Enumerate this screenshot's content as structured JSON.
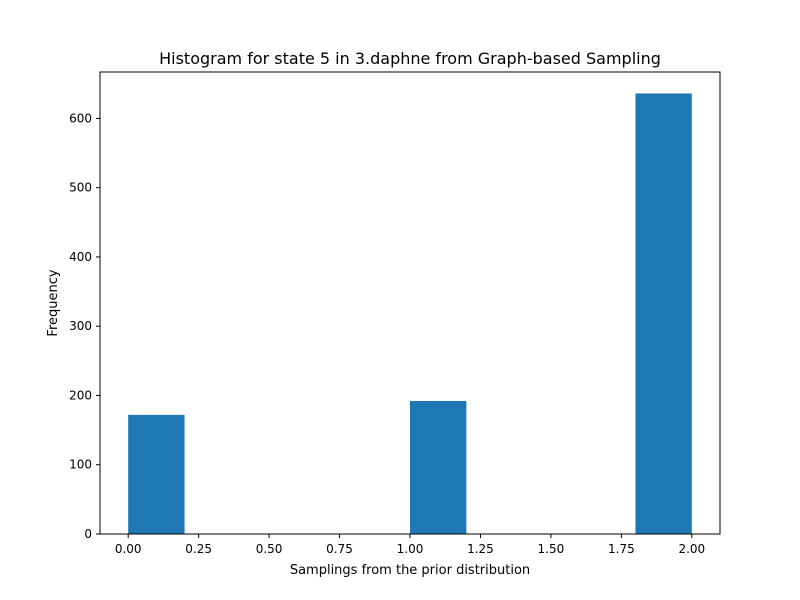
{
  "chart_data": {
    "type": "bar",
    "title": "Histogram for state 5 in 3.daphne from Graph-based Sampling",
    "xlabel": "Samplings from the prior distribution",
    "ylabel": "Frequency",
    "xlim": [
      -0.1,
      2.1
    ],
    "ylim": [
      0,
      667
    ],
    "x_ticks": [
      0.0,
      0.25,
      0.5,
      0.75,
      1.0,
      1.25,
      1.5,
      1.75,
      2.0
    ],
    "x_tick_labels": [
      "0.00",
      "0.25",
      "0.50",
      "0.75",
      "1.00",
      "1.25",
      "1.50",
      "1.75",
      "2.00"
    ],
    "y_ticks": [
      0,
      100,
      200,
      300,
      400,
      500,
      600
    ],
    "y_tick_labels": [
      "0",
      "100",
      "200",
      "300",
      "400",
      "500",
      "600"
    ],
    "bins": [
      {
        "start": 0.0,
        "end": 0.2,
        "value": 172
      },
      {
        "start": 0.2,
        "end": 0.4,
        "value": 0
      },
      {
        "start": 0.4,
        "end": 0.6,
        "value": 0
      },
      {
        "start": 0.6,
        "end": 0.8,
        "value": 0
      },
      {
        "start": 0.8,
        "end": 1.0,
        "value": 0
      },
      {
        "start": 1.0,
        "end": 1.2,
        "value": 192
      },
      {
        "start": 1.2,
        "end": 1.4,
        "value": 0
      },
      {
        "start": 1.4,
        "end": 1.6,
        "value": 0
      },
      {
        "start": 1.6,
        "end": 1.8,
        "value": 0
      },
      {
        "start": 1.8,
        "end": 2.0,
        "value": 636
      }
    ],
    "bar_color": "#1f77b4",
    "grid": false,
    "legend": "none"
  }
}
